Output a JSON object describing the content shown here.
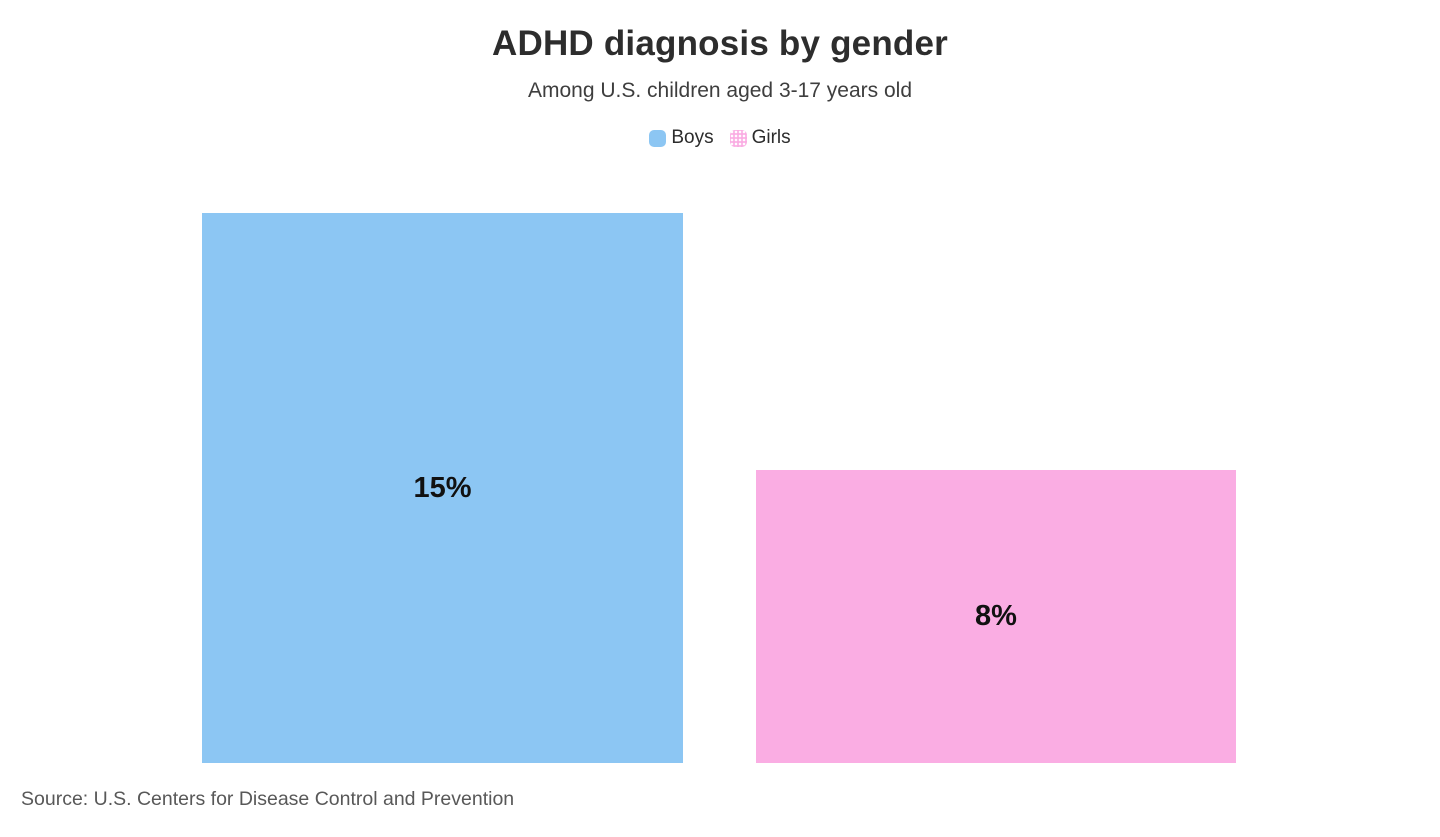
{
  "header": {
    "title": "ADHD diagnosis by gender",
    "subtitle": "Among U.S. children aged 3-17 years old"
  },
  "legend": {
    "items": [
      {
        "label": "Boys",
        "color": "#8cc6f3",
        "pattern": "solid"
      },
      {
        "label": "Girls",
        "color": "#faade3",
        "pattern": "dots"
      }
    ]
  },
  "chart_data": {
    "type": "bar",
    "orientation": "vertical",
    "title": "ADHD diagnosis by gender",
    "subtitle": "Among U.S. children aged 3-17 years old",
    "categories": [
      "Boys",
      "Girls"
    ],
    "values": [
      15,
      8
    ],
    "value_labels": [
      "15%",
      "8%"
    ],
    "colors": [
      "#8cc6f3",
      "#faade3"
    ],
    "unit": "percent",
    "ylim": [
      0,
      15
    ],
    "grid": false,
    "axes_shown": false,
    "legend_position": "top",
    "value_label_position": "center-of-bar"
  },
  "footer": {
    "source": "Source: U.S. Centers for Disease Control and Prevention"
  }
}
